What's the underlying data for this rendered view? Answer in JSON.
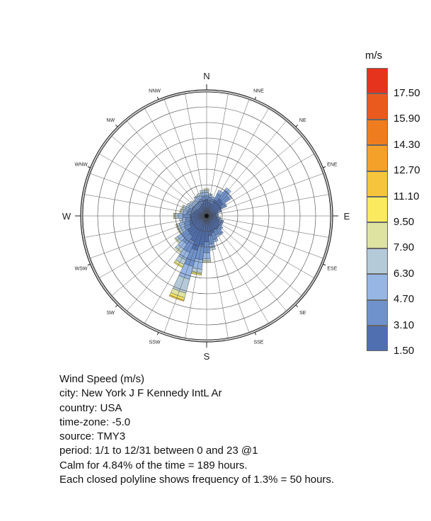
{
  "chart_data": {
    "type": "wind-rose",
    "units_label": "m/s",
    "directions": [
      "N",
      "NNE",
      "NE",
      "ENE",
      "E",
      "ESE",
      "SE",
      "SSE",
      "S",
      "SSW",
      "SW",
      "WSW",
      "W",
      "WNW",
      "NW",
      "NNW"
    ],
    "major_directions": [
      "N",
      "E",
      "S",
      "W"
    ],
    "frequency_ring_step_percent": 1.3,
    "bins": [
      {
        "label": "17.50",
        "color": "#e5331d"
      },
      {
        "label": "15.90",
        "color": "#ea5a1f"
      },
      {
        "label": "14.30",
        "color": "#ef7d1f"
      },
      {
        "label": "12.70",
        "color": "#f4a12a"
      },
      {
        "label": "11.10",
        "color": "#f7c53b"
      },
      {
        "label": "9.50",
        "color": "#f9ea5f"
      },
      {
        "label": "7.90",
        "color": "#dfe3a1"
      },
      {
        "label": "6.30",
        "color": "#b4cad8"
      },
      {
        "label": "4.70",
        "color": "#97b6e3"
      },
      {
        "label": "3.10",
        "color": "#6f92cd"
      },
      {
        "label": "1.50",
        "color": "#4f6fb1"
      }
    ],
    "sector_frequency_percent": [
      {
        "center_deg": 0,
        "bands": [
          1.2,
          0.3,
          0.3,
          0.2,
          0.1
        ]
      },
      {
        "center_deg": 10,
        "bands": [
          1.0,
          0.4,
          0.2,
          0.1
        ]
      },
      {
        "center_deg": 20,
        "bands": [
          0.9,
          0.4,
          0.2
        ]
      },
      {
        "center_deg": 30,
        "bands": [
          1.3,
          0.6,
          0.3
        ]
      },
      {
        "center_deg": 40,
        "bands": [
          1.6,
          0.8,
          0.3
        ]
      },
      {
        "center_deg": 50,
        "bands": [
          1.5,
          0.7,
          0.2
        ]
      },
      {
        "center_deg": 60,
        "bands": [
          1.2,
          0.4,
          0.1
        ]
      },
      {
        "center_deg": 70,
        "bands": [
          0.8,
          0.3
        ]
      },
      {
        "center_deg": 80,
        "bands": [
          0.6,
          0.2
        ]
      },
      {
        "center_deg": 90,
        "bands": [
          0.6,
          0.2
        ]
      },
      {
        "center_deg": 100,
        "bands": [
          0.7,
          0.3
        ]
      },
      {
        "center_deg": 110,
        "bands": [
          0.9,
          0.4
        ]
      },
      {
        "center_deg": 120,
        "bands": [
          1.0,
          0.3
        ]
      },
      {
        "center_deg": 130,
        "bands": [
          1.1,
          0.3,
          0.1
        ]
      },
      {
        "center_deg": 140,
        "bands": [
          1.2,
          0.5,
          0.1
        ]
      },
      {
        "center_deg": 150,
        "bands": [
          1.1,
          0.5,
          0.2
        ]
      },
      {
        "center_deg": 160,
        "bands": [
          1.3,
          0.6,
          0.2
        ]
      },
      {
        "center_deg": 170,
        "bands": [
          1.5,
          0.7,
          0.3,
          0.2
        ]
      },
      {
        "center_deg": 180,
        "bands": [
          2.0,
          0.9,
          0.5,
          0.2,
          0.1
        ]
      },
      {
        "center_deg": 190,
        "bands": [
          2.3,
          1.2,
          0.8,
          0.3,
          0.1,
          0.1
        ]
      },
      {
        "center_deg": 200,
        "bands": [
          2.8,
          1.4,
          1.1,
          1.2,
          0.4,
          0.2,
          0.1
        ]
      },
      {
        "center_deg": 210,
        "bands": [
          2.2,
          1.0,
          0.7,
          0.4,
          0.2,
          0.1
        ]
      },
      {
        "center_deg": 220,
        "bands": [
          1.9,
          0.8,
          0.5,
          0.3,
          0.1
        ]
      },
      {
        "center_deg": 230,
        "bands": [
          1.8,
          0.6,
          0.4,
          0.2,
          0.1
        ]
      },
      {
        "center_deg": 240,
        "bands": [
          1.4,
          0.5,
          0.3,
          0.2,
          0.1
        ]
      },
      {
        "center_deg": 250,
        "bands": [
          1.3,
          0.5,
          0.4,
          0.2,
          0.1
        ]
      },
      {
        "center_deg": 260,
        "bands": [
          1.2,
          0.4,
          0.3,
          0.2
        ]
      },
      {
        "center_deg": 270,
        "bands": [
          1.2,
          0.6,
          0.4,
          0.3,
          0.1
        ]
      },
      {
        "center_deg": 280,
        "bands": [
          1.0,
          0.5,
          0.3,
          0.2,
          0.1
        ]
      },
      {
        "center_deg": 290,
        "bands": [
          0.9,
          0.5,
          0.3,
          0.2,
          0.1
        ]
      },
      {
        "center_deg": 300,
        "bands": [
          0.8,
          0.4,
          0.3,
          0.2
        ]
      },
      {
        "center_deg": 310,
        "bands": [
          0.7,
          0.4,
          0.3,
          0.2
        ]
      },
      {
        "center_deg": 320,
        "bands": [
          0.7,
          0.4,
          0.3,
          0.1
        ]
      },
      {
        "center_deg": 330,
        "bands": [
          0.8,
          0.4,
          0.4,
          0.1
        ]
      },
      {
        "center_deg": 340,
        "bands": [
          0.9,
          0.4,
          0.3,
          0.2
        ]
      },
      {
        "center_deg": 350,
        "bands": [
          1.1,
          0.4,
          0.3,
          0.2
        ]
      }
    ]
  },
  "info": {
    "title": "Wind Speed (m/s)",
    "city": "city: New York J F Kennedy IntL Ar",
    "country": "country: USA",
    "timezone": "time-zone: -5.0",
    "source": "source: TMY3",
    "period": "period: 1/1 to 12/31 between 0 and 23 @1",
    "calm": "Calm for 4.84% of the time = 189 hours.",
    "rings_note": "Each closed polyline shows frequency of 1.3% = 50 hours."
  }
}
